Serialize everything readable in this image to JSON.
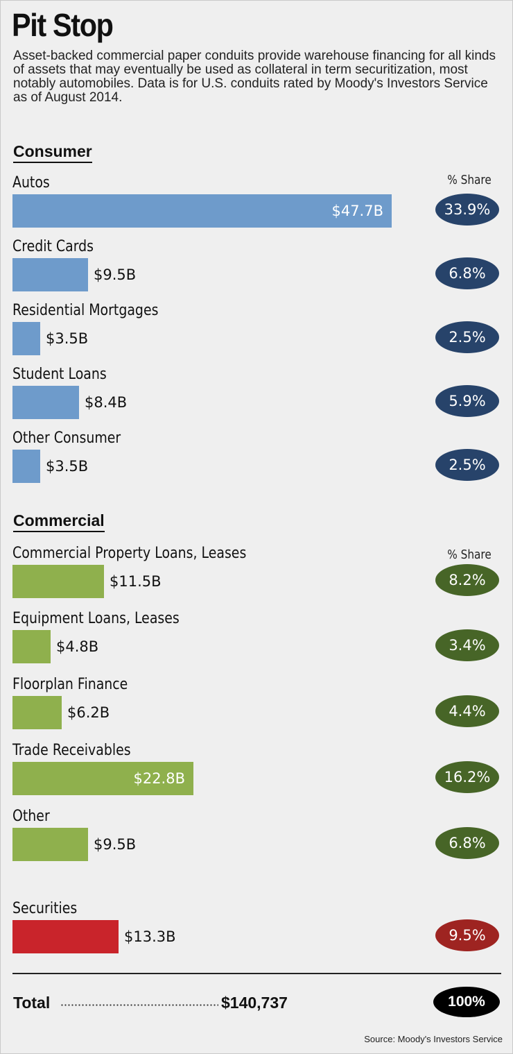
{
  "title": "Pit Stop",
  "subtitle": "Asset-backed commercial paper conduits provide warehouse financing for all kinds of assets that may eventually be used as collateral in term securitization, most notably automobiles. Data is for U.S. conduits rated by Moody's Investors Service as of August 2014.",
  "colors": {
    "consumer_bar": "#6e9bcb",
    "consumer_pill": "#27436a",
    "commercial_bar": "#8fb04d",
    "commercial_pill": "#476527",
    "securities_bar": "#c9242b",
    "securities_pill": "#9e2421",
    "total_pill": "#000000"
  },
  "share_header": "% Share",
  "chart_data": {
    "type": "bar",
    "orientation": "horizontal",
    "value_unit": "$ billions",
    "groups": [
      {
        "key": "consumer",
        "heading": "Consumer",
        "items": [
          {
            "label": "Autos",
            "value": 47.7,
            "value_label": "$47.7B",
            "share": "33.9%"
          },
          {
            "label": "Credit Cards",
            "value": 9.5,
            "value_label": "$9.5B",
            "share": "6.8%"
          },
          {
            "label": "Residential Mortgages",
            "value": 3.5,
            "value_label": "$3.5B",
            "share": "2.5%"
          },
          {
            "label": "Student Loans",
            "value": 8.4,
            "value_label": "$8.4B",
            "share": "5.9%"
          },
          {
            "label": "Other Consumer",
            "value": 3.5,
            "value_label": "$3.5B",
            "share": "2.5%"
          }
        ]
      },
      {
        "key": "commercial",
        "heading": "Commercial",
        "items": [
          {
            "label": "Commercial Property Loans, Leases",
            "value": 11.5,
            "value_label": "$11.5B",
            "share": "8.2%"
          },
          {
            "label": "Equipment Loans, Leases",
            "value": 4.8,
            "value_label": "$4.8B",
            "share": "3.4%"
          },
          {
            "label": "Floorplan Finance",
            "value": 6.2,
            "value_label": "$6.2B",
            "share": "4.4%"
          },
          {
            "label": "Trade Receivables",
            "value": 22.8,
            "value_label": "$22.8B",
            "share": "16.2%"
          },
          {
            "label": "Other",
            "value": 9.5,
            "value_label": "$9.5B",
            "share": "6.8%"
          }
        ]
      },
      {
        "key": "securities",
        "heading": "",
        "items": [
          {
            "label": "Securities",
            "value": 13.3,
            "value_label": "$13.3B",
            "share": "9.5%"
          }
        ]
      }
    ],
    "xlim": [
      0,
      47.7
    ]
  },
  "total": {
    "label": "Total",
    "value": "$140,737",
    "share": "100%"
  },
  "source": "Source: Moody's Investors Service"
}
